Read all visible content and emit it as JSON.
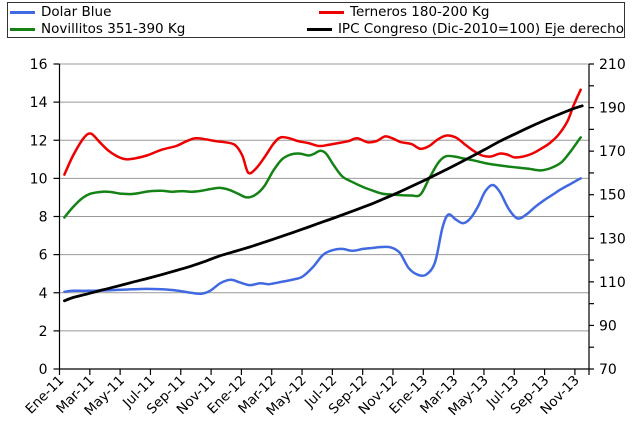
{
  "legend": {
    "entries": [
      {
        "label": "Dolar Blue",
        "color": "#4169E1"
      },
      {
        "label": "Terneros 180-200 Kg",
        "color": "#EE0000"
      },
      {
        "label": "Novillitos 351-390 Kg",
        "color": "#148214"
      },
      {
        "label": "IPC Congreso (Dic-2010=100) Eje derecho",
        "color": "#000000"
      }
    ]
  },
  "chart_data": {
    "type": "line",
    "title": "",
    "x_unit": "months since Ene-2011",
    "x_range": [
      0,
      34.93
    ],
    "x_tick_positions": [
      0,
      2,
      4,
      6,
      8,
      10,
      12,
      14,
      16,
      18,
      20,
      22,
      24,
      26,
      28,
      30,
      32,
      34
    ],
    "x_tick_labels": [
      "Ene-11",
      "Mar-11",
      "May-11",
      "Jul-11",
      "Sep-11",
      "Nov-11",
      "Ene-12",
      "Mar-12",
      "May-12",
      "Jul-12",
      "Sep-12",
      "Nov-12",
      "Ene-13",
      "Mar-13",
      "May-13",
      "Jul-13",
      "Sep-13",
      "Nov-13"
    ],
    "y_left": {
      "range": [
        0,
        16
      ],
      "ticks": [
        0,
        2,
        4,
        6,
        8,
        10,
        12,
        14,
        16
      ]
    },
    "y_right": {
      "range": [
        70,
        210
      ],
      "ticks": [
        70,
        90,
        110,
        130,
        150,
        170,
        190,
        210
      ],
      "minor_step": 10
    },
    "grid": true,
    "legend_position": "top",
    "series": [
      {
        "name": "Dolar Blue",
        "color": "#4169E1",
        "axis": "left",
        "x": [
          0.32,
          0.9,
          1.87,
          2.84,
          3.82,
          4.79,
          5.76,
          6.73,
          7.7,
          8.67,
          9.35,
          9.93,
          10.61,
          11.29,
          11.87,
          12.55,
          13.23,
          13.81,
          14.49,
          15.46,
          16.04,
          16.72,
          17.4,
          18.08,
          18.66,
          19.34,
          20.02,
          20.6,
          21.28,
          21.86,
          22.44,
          23.03,
          23.61,
          24.19,
          24.77,
          25.26,
          25.65,
          26.13,
          26.62,
          27.1,
          27.59,
          28.07,
          28.56,
          29.04,
          29.63,
          30.21,
          30.79,
          31.37,
          31.96,
          32.54,
          33.12,
          33.7,
          34.38
        ],
        "y": [
          4.05,
          4.1,
          4.1,
          4.12,
          4.15,
          4.18,
          4.2,
          4.18,
          4.12,
          4.0,
          3.95,
          4.1,
          4.5,
          4.68,
          4.55,
          4.4,
          4.5,
          4.45,
          4.55,
          4.7,
          4.85,
          5.35,
          6.0,
          6.25,
          6.3,
          6.2,
          6.3,
          6.35,
          6.4,
          6.38,
          6.1,
          5.3,
          4.95,
          4.95,
          5.6,
          7.4,
          8.1,
          7.85,
          7.65,
          7.9,
          8.5,
          9.3,
          9.65,
          9.3,
          8.4,
          7.9,
          8.1,
          8.5,
          8.85,
          9.15,
          9.45,
          9.7,
          10.0
        ]
      },
      {
        "name": "Terneros 180-200 Kg",
        "color": "#EE0000",
        "axis": "left",
        "x": [
          0.32,
          0.9,
          1.58,
          2.07,
          2.65,
          3.23,
          3.82,
          4.4,
          4.98,
          5.76,
          6.73,
          7.7,
          8.38,
          8.96,
          9.64,
          10.32,
          10.9,
          11.58,
          12.06,
          12.45,
          12.94,
          13.52,
          14.1,
          14.58,
          15.17,
          15.75,
          16.43,
          17.11,
          17.69,
          18.37,
          19.05,
          19.63,
          20.31,
          20.89,
          21.48,
          21.96,
          22.54,
          23.22,
          23.81,
          24.39,
          24.97,
          25.55,
          26.13,
          26.72,
          27.3,
          27.88,
          28.46,
          29.05,
          29.53,
          30.02,
          30.6,
          31.18,
          31.76,
          32.34,
          32.93,
          33.51,
          33.9,
          34.38
        ],
        "y": [
          10.2,
          11.2,
          12.1,
          12.35,
          11.9,
          11.45,
          11.15,
          11.0,
          11.05,
          11.2,
          11.5,
          11.7,
          11.95,
          12.1,
          12.05,
          11.95,
          11.9,
          11.75,
          11.2,
          10.3,
          10.5,
          11.1,
          11.8,
          12.15,
          12.1,
          11.95,
          11.85,
          11.7,
          11.75,
          11.85,
          11.95,
          12.1,
          11.9,
          11.95,
          12.2,
          12.1,
          11.9,
          11.8,
          11.55,
          11.7,
          12.05,
          12.25,
          12.15,
          11.8,
          11.45,
          11.2,
          11.15,
          11.3,
          11.25,
          11.1,
          11.15,
          11.3,
          11.55,
          11.85,
          12.3,
          13.0,
          13.8,
          14.65
        ]
      },
      {
        "name": "Novillitos 351-390 Kg",
        "color": "#148214",
        "axis": "left",
        "x": [
          0.32,
          0.9,
          1.49,
          2.07,
          2.84,
          3.43,
          4.01,
          4.79,
          5.37,
          5.95,
          6.73,
          7.41,
          8.09,
          8.67,
          9.35,
          10.03,
          10.61,
          11.19,
          11.77,
          12.35,
          12.94,
          13.52,
          14.1,
          14.68,
          15.26,
          15.85,
          16.43,
          16.82,
          17.21,
          17.59,
          18.08,
          18.66,
          19.34,
          20.02,
          20.7,
          21.28,
          21.96,
          22.64,
          23.22,
          23.81,
          24.39,
          24.97,
          25.45,
          26.04,
          26.62,
          27.3,
          28.07,
          28.85,
          29.63,
          30.41,
          30.99,
          31.76,
          32.44,
          33.12,
          33.7,
          34.38
        ],
        "y": [
          7.95,
          8.5,
          8.95,
          9.2,
          9.3,
          9.28,
          9.2,
          9.18,
          9.25,
          9.32,
          9.35,
          9.3,
          9.33,
          9.3,
          9.35,
          9.45,
          9.5,
          9.4,
          9.2,
          9.0,
          9.15,
          9.6,
          10.4,
          11.0,
          11.25,
          11.3,
          11.2,
          11.3,
          11.45,
          11.3,
          10.7,
          10.1,
          9.8,
          9.55,
          9.35,
          9.2,
          9.15,
          9.12,
          9.1,
          9.15,
          10.0,
          10.8,
          11.15,
          11.15,
          11.05,
          10.95,
          10.8,
          10.7,
          10.62,
          10.55,
          10.5,
          10.42,
          10.55,
          10.85,
          11.4,
          12.15
        ]
      },
      {
        "name": "IPC Congreso (Dic-2010=100) Eje derecho",
        "color": "#000000",
        "axis": "right",
        "x": [
          0.32,
          0.9,
          1.87,
          2.84,
          3.82,
          4.79,
          5.76,
          6.73,
          7.7,
          8.67,
          9.64,
          10.61,
          11.58,
          12.55,
          13.52,
          14.49,
          15.46,
          16.43,
          17.4,
          18.37,
          19.34,
          20.31,
          21.28,
          22.25,
          23.22,
          24.19,
          25.16,
          26.13,
          27.1,
          28.07,
          29.04,
          30.02,
          30.99,
          31.96,
          32.93,
          33.9,
          34.48
        ],
        "y": [
          101.3,
          102.8,
          104.5,
          106.3,
          108,
          109.8,
          111.5,
          113.3,
          115.2,
          117.2,
          119.5,
          122,
          124,
          126,
          128.2,
          130.5,
          132.8,
          135.2,
          137.6,
          140,
          142.5,
          145,
          147.8,
          150.7,
          153.8,
          157,
          160.3,
          163.7,
          167.2,
          170.8,
          174.5,
          177.8,
          181,
          184,
          186.8,
          189.5,
          190.8
        ]
      }
    ]
  },
  "colors": {
    "background": "#FFFFFF",
    "grid": "#999999",
    "axis": "#000000",
    "legend_border": "#333333",
    "tick_label": "#000000"
  }
}
